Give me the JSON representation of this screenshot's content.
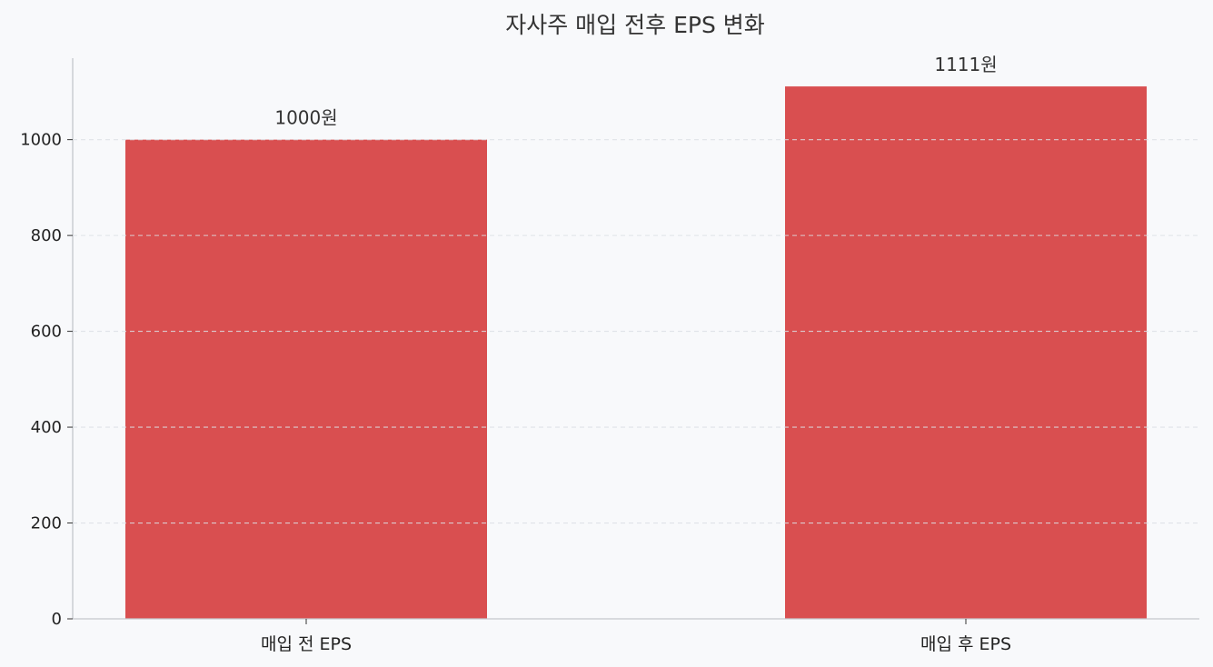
{
  "colors": {
    "background": "#f8f9fb",
    "bar": "#d94f50",
    "grid": "#dcdfe4",
    "axis": "#c4c7cc",
    "text": "#333333"
  },
  "chart_data": {
    "type": "bar",
    "title": "자사주 매입 전후 EPS 변화",
    "xlabel": "",
    "ylabel": "",
    "categories": [
      "매입 전 EPS",
      "매입 후 EPS"
    ],
    "values": [
      1000,
      1111
    ],
    "data_labels": [
      "1000원",
      "1111원"
    ],
    "ylim": [
      0,
      1170
    ],
    "yticks": [
      0,
      200,
      400,
      600,
      800,
      1000
    ],
    "ytick_labels": [
      "0",
      "200",
      "400",
      "600",
      "800",
      "1000"
    ],
    "grid": "horizontal dashed",
    "legend": "none"
  }
}
